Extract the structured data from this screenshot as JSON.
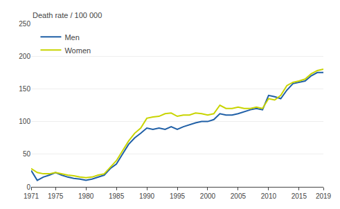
{
  "chart_data": {
    "type": "line",
    "ylabel": "Death rate / 100 000",
    "x": [
      1971,
      1972,
      1973,
      1974,
      1975,
      1976,
      1977,
      1978,
      1979,
      1980,
      1981,
      1982,
      1983,
      1984,
      1985,
      1986,
      1987,
      1988,
      1989,
      1990,
      1991,
      1992,
      1993,
      1994,
      1995,
      1996,
      1997,
      1998,
      1999,
      2000,
      2001,
      2002,
      2003,
      2004,
      2005,
      2006,
      2007,
      2008,
      2009,
      2010,
      2011,
      2012,
      2013,
      2014,
      2015,
      2016,
      2017,
      2018,
      2019
    ],
    "series": [
      {
        "name": "Men",
        "color": "#1f5fa6",
        "values": [
          25,
          10,
          15,
          18,
          22,
          18,
          15,
          13,
          12,
          10,
          12,
          15,
          18,
          28,
          35,
          50,
          65,
          75,
          82,
          90,
          88,
          90,
          88,
          92,
          88,
          92,
          95,
          98,
          100,
          100,
          103,
          112,
          110,
          110,
          112,
          115,
          118,
          120,
          118,
          140,
          138,
          135,
          148,
          158,
          160,
          162,
          170,
          175,
          175
        ]
      },
      {
        "name": "Women",
        "color": "#c8d400",
        "values": [
          28,
          22,
          20,
          20,
          22,
          20,
          18,
          17,
          15,
          14,
          15,
          18,
          20,
          30,
          40,
          55,
          70,
          82,
          90,
          105,
          107,
          108,
          112,
          113,
          108,
          110,
          110,
          113,
          112,
          110,
          112,
          125,
          120,
          120,
          122,
          120,
          120,
          122,
          120,
          135,
          133,
          140,
          155,
          160,
          162,
          165,
          173,
          178,
          180
        ]
      }
    ],
    "xlim": [
      1971,
      2019
    ],
    "xticks": [
      1971,
      1975,
      1980,
      1985,
      1990,
      1995,
      2000,
      2005,
      2010,
      2015,
      2019
    ],
    "ylim": [
      0,
      250
    ],
    "yticks": [
      0,
      50,
      100,
      150,
      200,
      250
    ],
    "grid": true,
    "legend": "upper left"
  }
}
